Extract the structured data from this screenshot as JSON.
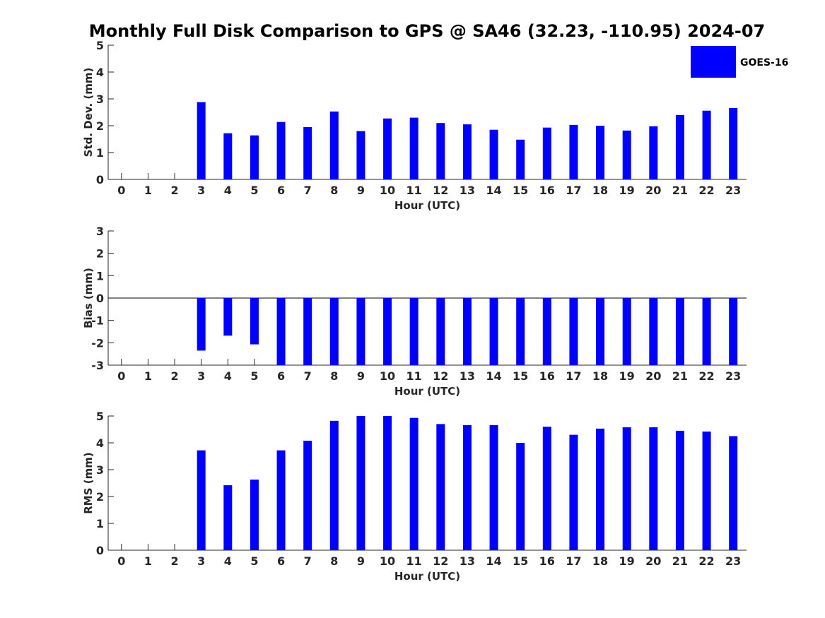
{
  "chart_data": {
    "type": "bar",
    "title": "Monthly Full Disk Comparison to GPS @ SA46 (32.23, -110.95) 2024-07",
    "legend": {
      "entries": [
        "GOES-16"
      ],
      "placement": "top-right"
    },
    "colors": {
      "bars": "#0000ff",
      "axes": "#262626",
      "zero_line": "#000000"
    },
    "grid": false,
    "panels": [
      {
        "ylabel": "Std. Dev. (mm)",
        "xlabel": "Hour (UTC)",
        "ylim": [
          0,
          5
        ],
        "yticks": [
          "0",
          "1",
          "2",
          "3",
          "4",
          "5"
        ],
        "categories": [
          "0",
          "1",
          "2",
          "3",
          "4",
          "5",
          "6",
          "7",
          "8",
          "9",
          "10",
          "11",
          "12",
          "13",
          "14",
          "15",
          "16",
          "17",
          "18",
          "19",
          "20",
          "21",
          "22",
          "23"
        ],
        "series": [
          {
            "name": "GOES-16",
            "values": [
              null,
              null,
              null,
              2.88,
              1.72,
              1.64,
              2.14,
              1.95,
              2.53,
              1.8,
              2.27,
              2.3,
              2.1,
              2.05,
              1.85,
              1.48,
              1.93,
              2.03,
              2.0,
              1.82,
              1.98,
              2.4,
              2.56,
              2.66
            ]
          }
        ]
      },
      {
        "ylabel": "Bias (mm)",
        "xlabel": "Hour (UTC)",
        "ylim": [
          -3,
          3
        ],
        "yticks": [
          "-3",
          "-2",
          "-1",
          "0",
          "1",
          "2",
          "3"
        ],
        "categories": [
          "0",
          "1",
          "2",
          "3",
          "4",
          "5",
          "6",
          "7",
          "8",
          "9",
          "10",
          "11",
          "12",
          "13",
          "14",
          "15",
          "16",
          "17",
          "18",
          "19",
          "20",
          "21",
          "22",
          "23"
        ],
        "series": [
          {
            "name": "GOES-16",
            "values": [
              null,
              null,
              null,
              -2.35,
              -1.68,
              -2.07,
              -3.0,
              -3.0,
              -3.0,
              -3.0,
              -3.0,
              -3.0,
              -3.0,
              -3.0,
              -3.0,
              -3.0,
              -3.0,
              -3.0,
              -3.0,
              -3.0,
              -3.0,
              -3.0,
              -3.0,
              -3.0
            ]
          }
        ]
      },
      {
        "ylabel": "RMS (mm)",
        "xlabel": "Hour (UTC)",
        "ylim": [
          0,
          5
        ],
        "yticks": [
          "0",
          "1",
          "2",
          "3",
          "4",
          "5"
        ],
        "categories": [
          "0",
          "1",
          "2",
          "3",
          "4",
          "5",
          "6",
          "7",
          "8",
          "9",
          "10",
          "11",
          "12",
          "13",
          "14",
          "15",
          "16",
          "17",
          "18",
          "19",
          "20",
          "21",
          "22",
          "23"
        ],
        "series": [
          {
            "name": "GOES-16",
            "values": [
              null,
              null,
              null,
              3.72,
              2.42,
              2.63,
              3.72,
              4.08,
              4.82,
              5.0,
              5.0,
              4.93,
              4.7,
              4.66,
              4.66,
              4.0,
              4.6,
              4.3,
              4.53,
              4.58,
              4.58,
              4.45,
              4.42,
              4.25
            ]
          }
        ]
      }
    ]
  }
}
